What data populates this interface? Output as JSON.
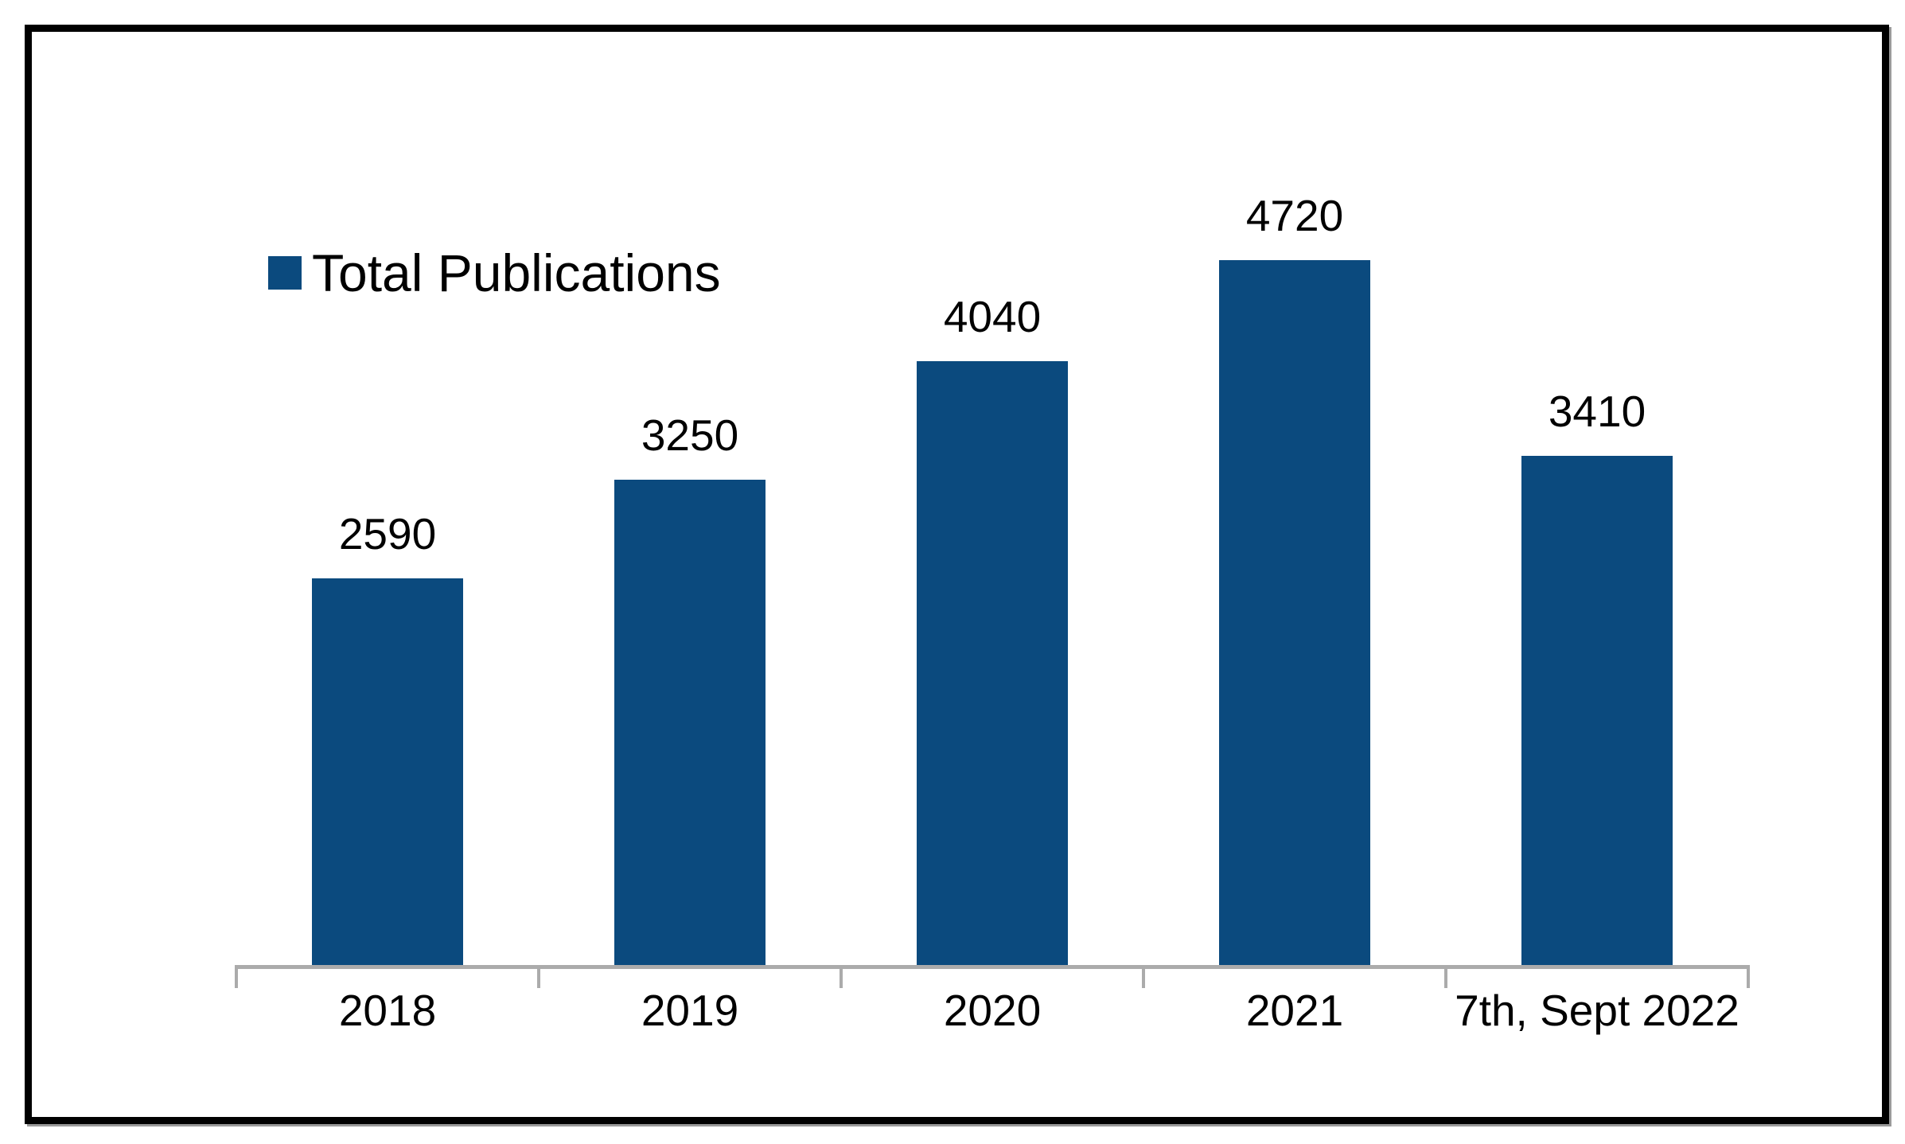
{
  "legend": {
    "label": "Total Publications",
    "marker": "square"
  },
  "chart_data": {
    "type": "bar",
    "title": "",
    "categories": [
      "2018",
      "2019",
      "2020",
      "2021",
      "7th, Sept 2022"
    ],
    "series": [
      {
        "name": "Total Publications",
        "values": [
          2590,
          3250,
          4040,
          4720,
          3410
        ]
      }
    ],
    "data_labels": [
      "2590",
      "3250",
      "4040",
      "4720",
      "3410"
    ],
    "xlabel": "",
    "ylabel": "",
    "ylim": [
      0,
      5000
    ],
    "grid": false,
    "legend_position": "top-left",
    "data_labels_visible": true
  },
  "colors": {
    "bar_fill": "#0b4a7e",
    "axis_line": "#ababab",
    "label_text": "#000000",
    "frame_border": "#000000"
  }
}
